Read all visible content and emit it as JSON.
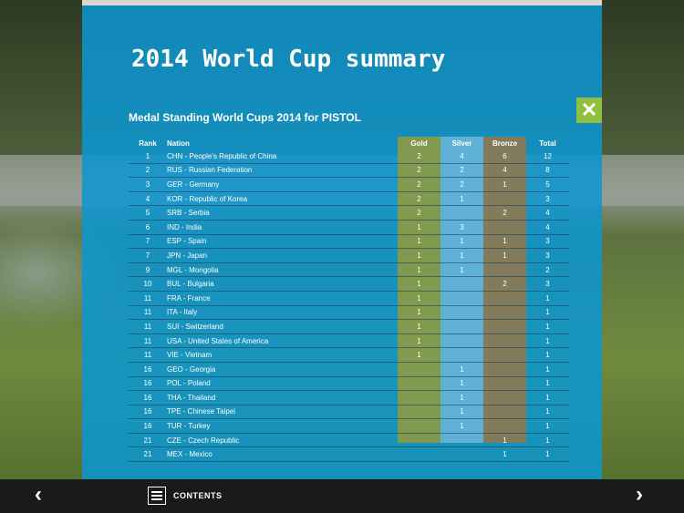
{
  "page": {
    "title": "2014 World Cup summary",
    "subtitle": "Medal Standing World Cups 2014 for PISTOL",
    "close_label": "✕"
  },
  "table": {
    "headers": {
      "rank": "Rank",
      "nation": "Nation",
      "gold": "Gold",
      "silver": "Silver",
      "bronze": "Bronze",
      "total": "Total"
    },
    "rows": [
      {
        "rank": "1",
        "nation": "CHN - People's Republic of China",
        "gold": "2",
        "silver": "4",
        "bronze": "6",
        "total": "12"
      },
      {
        "rank": "2",
        "nation": "RUS - Russian Federation",
        "gold": "2",
        "silver": "2",
        "bronze": "4",
        "total": "8"
      },
      {
        "rank": "3",
        "nation": "GER - Germany",
        "gold": "2",
        "silver": "2",
        "bronze": "1",
        "total": "5"
      },
      {
        "rank": "4",
        "nation": "KOR - Republic of Korea",
        "gold": "2",
        "silver": "1",
        "bronze": "",
        "total": "3"
      },
      {
        "rank": "5",
        "nation": "SRB - Serbia",
        "gold": "2",
        "silver": "",
        "bronze": "2",
        "total": "4"
      },
      {
        "rank": "6",
        "nation": "IND - India",
        "gold": "1",
        "silver": "3",
        "bronze": "",
        "total": "4"
      },
      {
        "rank": "7",
        "nation": "ESP - Spain",
        "gold": "1",
        "silver": "1",
        "bronze": "1",
        "total": "3"
      },
      {
        "rank": "7",
        "nation": "JPN - Japan",
        "gold": "1",
        "silver": "1",
        "bronze": "1",
        "total": "3"
      },
      {
        "rank": "9",
        "nation": "MGL - Mongolia",
        "gold": "1",
        "silver": "1",
        "bronze": "",
        "total": "2"
      },
      {
        "rank": "10",
        "nation": "BUL - Bulgaria",
        "gold": "1",
        "silver": "",
        "bronze": "2",
        "total": "3"
      },
      {
        "rank": "11",
        "nation": "FRA - France",
        "gold": "1",
        "silver": "",
        "bronze": "",
        "total": "1"
      },
      {
        "rank": "11",
        "nation": "ITA - Italy",
        "gold": "1",
        "silver": "",
        "bronze": "",
        "total": "1"
      },
      {
        "rank": "11",
        "nation": "SUI - Switzerland",
        "gold": "1",
        "silver": "",
        "bronze": "",
        "total": "1"
      },
      {
        "rank": "11",
        "nation": "USA - United States of America",
        "gold": "1",
        "silver": "",
        "bronze": "",
        "total": "1"
      },
      {
        "rank": "11",
        "nation": "VIE - Vietnam",
        "gold": "1",
        "silver": "",
        "bronze": "",
        "total": "1"
      },
      {
        "rank": "16",
        "nation": "GEO - Georgia",
        "gold": "",
        "silver": "1",
        "bronze": "",
        "total": "1"
      },
      {
        "rank": "16",
        "nation": "POL - Poland",
        "gold": "",
        "silver": "1",
        "bronze": "",
        "total": "1"
      },
      {
        "rank": "16",
        "nation": "THA - Thailand",
        "gold": "",
        "silver": "1",
        "bronze": "",
        "total": "1"
      },
      {
        "rank": "16",
        "nation": "TPE - Chinese Taipei",
        "gold": "",
        "silver": "1",
        "bronze": "",
        "total": "1"
      },
      {
        "rank": "16",
        "nation": "TUR - Turkey",
        "gold": "",
        "silver": "1",
        "bronze": "",
        "total": "1"
      },
      {
        "rank": "21",
        "nation": "CZE - Czech Republic",
        "gold": "",
        "silver": "",
        "bronze": "1",
        "total": "1"
      },
      {
        "rank": "21",
        "nation": "MEX - Mexico",
        "gold": "",
        "silver": "",
        "bronze": "1",
        "total": "1"
      }
    ]
  },
  "nav": {
    "prev_label": "‹",
    "next_label": "›",
    "contents_label": "CONTENTS"
  },
  "colors": {
    "panel": "#0c96d2",
    "gold_band": "#8a9a44",
    "silver_band": "#63b3d6",
    "bronze_band": "#8c7a52",
    "close_button": "#8fc13e"
  }
}
